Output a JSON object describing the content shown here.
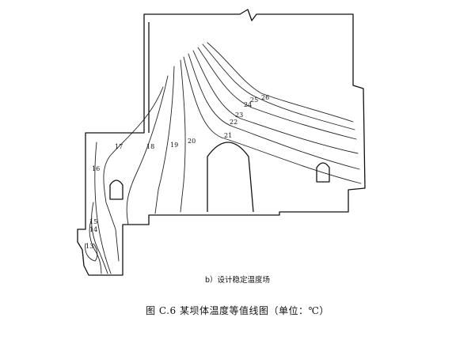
{
  "diagram": {
    "subtitle": "b）设计稳定温度场",
    "caption": "图 C.6   某坝体温度等值线图（单位：℃）",
    "contour_labels": [
      "13",
      "14",
      "15",
      "16",
      "17",
      "18",
      "19",
      "20",
      "21",
      "22",
      "23",
      "24",
      "25",
      "26"
    ]
  }
}
